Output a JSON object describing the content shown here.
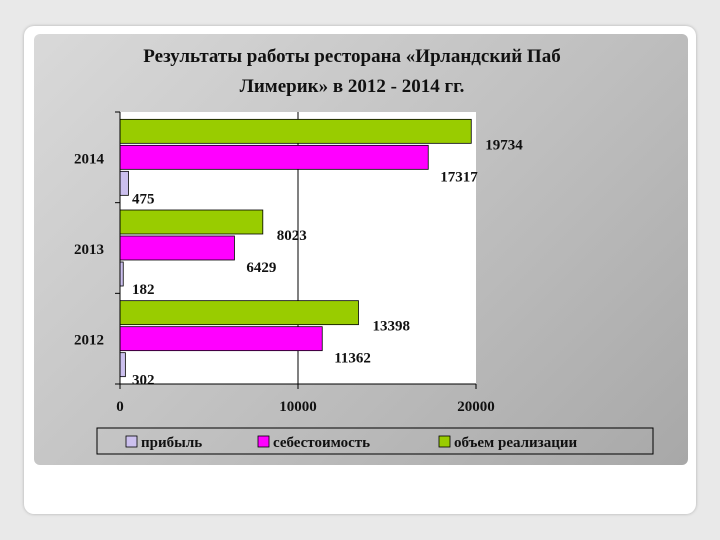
{
  "chart_data": {
    "type": "bar",
    "orientation": "horizontal",
    "title_lines": [
      "Результаты работы ресторана «Ирландский Паб",
      "Лимерик» в 2012 - 2014 гг."
    ],
    "categories": [
      "2012",
      "2013",
      "2014"
    ],
    "series": [
      {
        "name": "прибыль",
        "values": [
          302,
          182,
          475
        ],
        "color": "#ccc0ee"
      },
      {
        "name": "себестоимость",
        "values": [
          11362,
          6429,
          17317
        ],
        "color": "#ff00ff"
      },
      {
        "name": "объем реализации",
        "values": [
          13398,
          8023,
          19734
        ],
        "color": "#99cc00"
      }
    ],
    "xlim": [
      0,
      20000
    ],
    "xticks": [
      "0",
      "10000",
      "20000"
    ],
    "legend_position": "bottom",
    "grid": false
  }
}
